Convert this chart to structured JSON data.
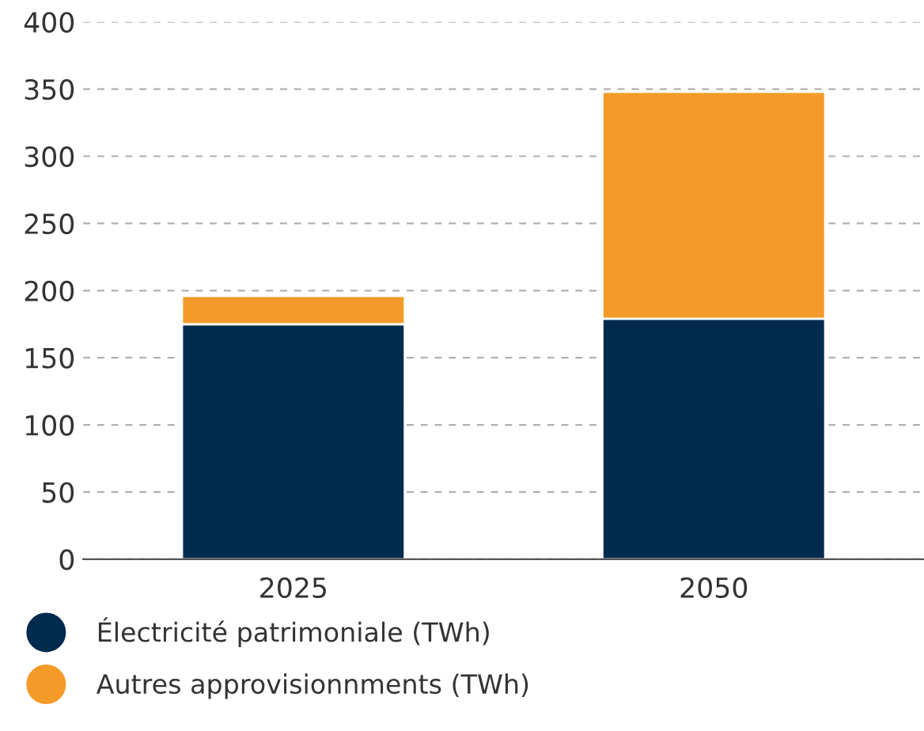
{
  "chart_data": {
    "type": "bar",
    "stacked": true,
    "categories": [
      "2025",
      "2050"
    ],
    "series": [
      {
        "name": "Électricité patrimoniale (TWh)",
        "color": "#002b4e",
        "values": [
          175,
          179
        ]
      },
      {
        "name": "Autres approvisionnments (TWh)",
        "color": "#f39a28",
        "values": [
          21,
          169
        ]
      }
    ],
    "ylim": [
      0,
      400
    ],
    "yticks": [
      0,
      50,
      100,
      150,
      200,
      250,
      300,
      350,
      400
    ],
    "grid": "y",
    "legend": "bottom"
  }
}
